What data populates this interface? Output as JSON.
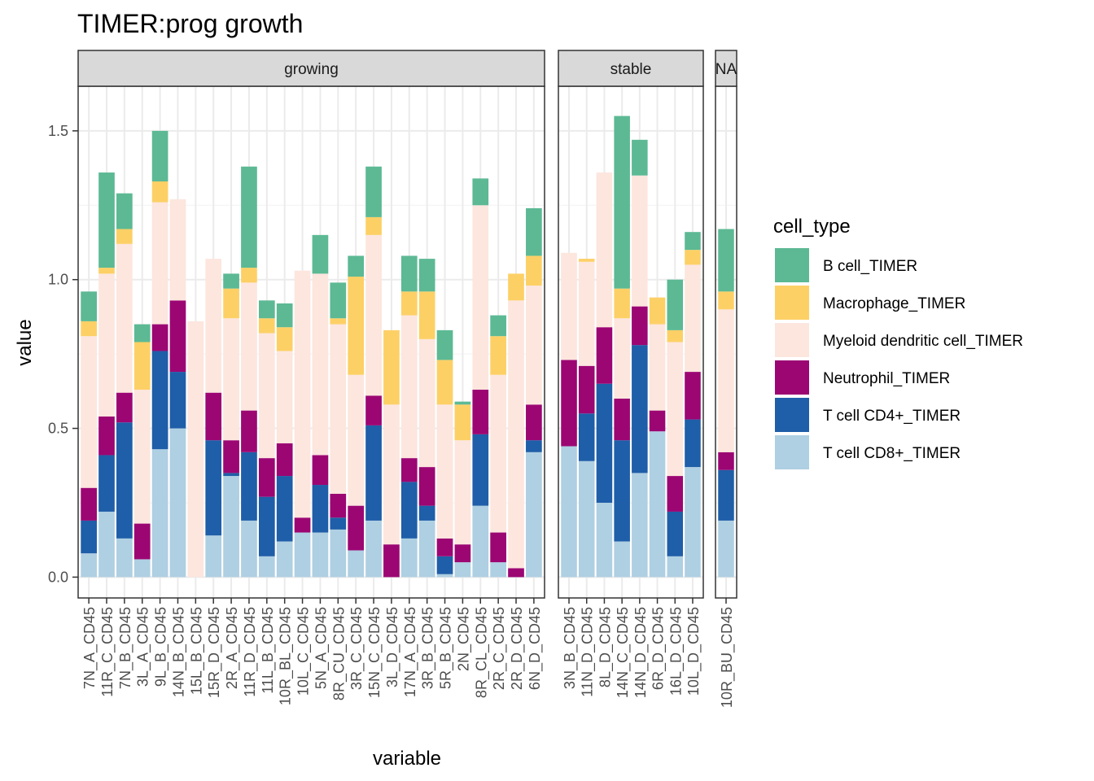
{
  "chart_data": {
    "type": "bar",
    "stacked": true,
    "title": "TIMER:prog growth",
    "xlabel": "variable",
    "ylabel": "value",
    "ylim": [
      -0.07,
      1.65
    ],
    "yticks": [
      0.0,
      0.5,
      1.0,
      1.5
    ],
    "ytick_labels": [
      "0.0",
      "0.5",
      "1.0",
      "1.5"
    ],
    "grid": true,
    "legend": {
      "title": "cell_type",
      "position": "right",
      "entries": [
        {
          "name": "B cell_TIMER",
          "color": "#5CB994"
        },
        {
          "name": "Macrophage_TIMER",
          "color": "#FDD066"
        },
        {
          "name": "Myeloid dendritic cell_TIMER",
          "color": "#FCE6DE"
        },
        {
          "name": "Neutrophil_TIMER",
          "color": "#9C0673"
        },
        {
          "name": "T cell CD4+_TIMER",
          "color": "#1F5EA8"
        },
        {
          "name": "T cell CD8+_TIMER",
          "color": "#AFCFE2"
        }
      ]
    },
    "stack_order_bottom_to_top": [
      "T cell CD8+_TIMER",
      "T cell CD4+_TIMER",
      "Neutrophil_TIMER",
      "Myeloid dendritic cell_TIMER",
      "Macrophage_TIMER",
      "B cell_TIMER"
    ],
    "facets": [
      {
        "label": "growing",
        "categories": [
          "7N_A_CD45",
          "11R_C_CD45",
          "7N_B_CD45",
          "3L_A_CD45",
          "9L_B_CD45",
          "14N_B_CD45",
          "15L_B_CD45",
          "15R_D_CD45",
          "2R_A_CD45",
          "11R_D_CD45",
          "11L_B_CD45",
          "10R_BL_CD45",
          "10L_C_CD45",
          "5N_A_CD45",
          "8R_CU_CD45",
          "3R_C_CD45",
          "15N_C_CD45",
          "3L_D_CD45",
          "17N_A_CD45",
          "3R_B_CD45",
          "5R_B_CD45",
          "2N_CD45",
          "8R_CL_CD45",
          "2R_C_CD45",
          "2R_D_CD45",
          "6N_D_CD45"
        ],
        "series": [
          {
            "name": "T cell CD8+_TIMER",
            "values": [
              0.08,
              0.22,
              0.13,
              0.06,
              0.43,
              0.5,
              0.0,
              0.14,
              0.34,
              0.19,
              0.07,
              0.12,
              0.15,
              0.15,
              0.16,
              0.09,
              0.19,
              0.0,
              0.13,
              0.19,
              0.01,
              0.05,
              0.24,
              0.05,
              0.0,
              0.42
            ]
          },
          {
            "name": "T cell CD4+_TIMER",
            "values": [
              0.11,
              0.19,
              0.39,
              0.0,
              0.33,
              0.19,
              0.0,
              0.32,
              0.01,
              0.23,
              0.2,
              0.22,
              0.0,
              0.16,
              0.04,
              0.0,
              0.32,
              0.0,
              0.19,
              0.05,
              0.06,
              0.0,
              0.24,
              0.0,
              0.0,
              0.04
            ]
          },
          {
            "name": "Neutrophil_TIMER",
            "values": [
              0.11,
              0.13,
              0.1,
              0.12,
              0.09,
              0.24,
              0.0,
              0.16,
              0.11,
              0.14,
              0.13,
              0.11,
              0.05,
              0.1,
              0.08,
              0.15,
              0.1,
              0.11,
              0.08,
              0.13,
              0.06,
              0.06,
              0.15,
              0.1,
              0.03,
              0.12
            ]
          },
          {
            "name": "Myeloid dendritic cell_TIMER",
            "values": [
              0.51,
              0.48,
              0.5,
              0.45,
              0.41,
              0.34,
              0.86,
              0.45,
              0.41,
              0.43,
              0.42,
              0.31,
              0.83,
              0.61,
              0.57,
              0.44,
              0.54,
              0.47,
              0.48,
              0.43,
              0.45,
              0.35,
              0.62,
              0.53,
              0.9,
              0.4
            ]
          },
          {
            "name": "Macrophage_TIMER",
            "values": [
              0.05,
              0.02,
              0.05,
              0.16,
              0.07,
              0.0,
              0.0,
              0.0,
              0.1,
              0.05,
              0.05,
              0.08,
              0.0,
              0.0,
              0.02,
              0.33,
              0.06,
              0.25,
              0.08,
              0.16,
              0.15,
              0.12,
              0.0,
              0.13,
              0.09,
              0.1
            ]
          },
          {
            "name": "B cell_TIMER",
            "values": [
              0.1,
              0.32,
              0.12,
              0.06,
              0.17,
              0.0,
              0.0,
              0.0,
              0.05,
              0.34,
              0.06,
              0.08,
              0.0,
              0.13,
              0.12,
              0.07,
              0.17,
              0.0,
              0.12,
              0.11,
              0.1,
              0.01,
              0.09,
              0.07,
              0.0,
              0.16
            ]
          }
        ]
      },
      {
        "label": "stable",
        "categories": [
          "3N_B_CD45",
          "11N_D_CD45",
          "8L_D_CD45",
          "14N_C_CD45",
          "14N_D_CD45",
          "6R_D_CD45",
          "16L_D_CD45",
          "10L_D_CD45"
        ],
        "series": [
          {
            "name": "T cell CD8+_TIMER",
            "values": [
              0.44,
              0.39,
              0.25,
              0.12,
              0.35,
              0.49,
              0.07,
              0.37
            ]
          },
          {
            "name": "T cell CD4+_TIMER",
            "values": [
              0.0,
              0.16,
              0.4,
              0.34,
              0.43,
              0.0,
              0.15,
              0.16
            ]
          },
          {
            "name": "Neutrophil_TIMER",
            "values": [
              0.29,
              0.16,
              0.19,
              0.14,
              0.13,
              0.07,
              0.12,
              0.16
            ]
          },
          {
            "name": "Myeloid dendritic cell_TIMER",
            "values": [
              0.36,
              0.35,
              0.52,
              0.27,
              0.44,
              0.29,
              0.45,
              0.36
            ]
          },
          {
            "name": "Macrophage_TIMER",
            "values": [
              0.0,
              0.01,
              0.0,
              0.1,
              0.0,
              0.09,
              0.04,
              0.05
            ]
          },
          {
            "name": "B cell_TIMER",
            "values": [
              0.0,
              0.0,
              0.0,
              0.58,
              0.12,
              0.0,
              0.17,
              0.06
            ]
          }
        ]
      },
      {
        "label": "NA",
        "categories": [
          "10R_BU_CD45"
        ],
        "series": [
          {
            "name": "T cell CD8+_TIMER",
            "values": [
              0.19
            ]
          },
          {
            "name": "T cell CD4+_TIMER",
            "values": [
              0.17
            ]
          },
          {
            "name": "Neutrophil_TIMER",
            "values": [
              0.06
            ]
          },
          {
            "name": "Myeloid dendritic cell_TIMER",
            "values": [
              0.48
            ]
          },
          {
            "name": "Macrophage_TIMER",
            "values": [
              0.06
            ]
          },
          {
            "name": "B cell_TIMER",
            "values": [
              0.21
            ]
          }
        ]
      }
    ]
  }
}
